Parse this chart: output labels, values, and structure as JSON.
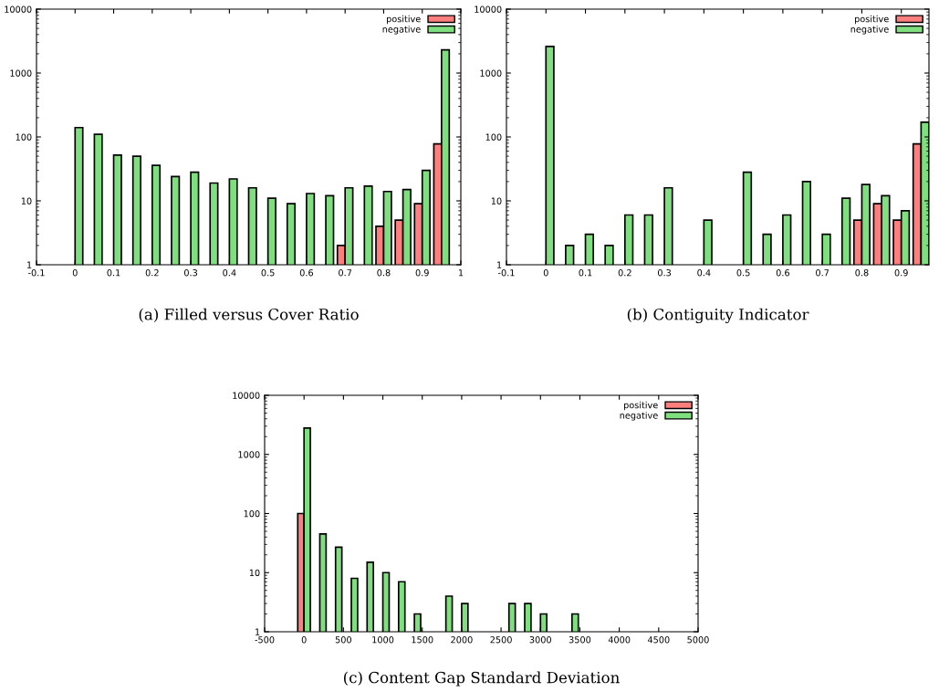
{
  "chart_data": [
    {
      "type": "bar",
      "title": "(a) Filled versus Cover Ratio",
      "log": "y",
      "legend": "top right",
      "grid": false,
      "xlim": [
        -0.1,
        1
      ],
      "xticks": [
        -0.1,
        0,
        0.1,
        0.2,
        0.3,
        0.4,
        0.5,
        0.6,
        0.7,
        0.8,
        0.9,
        1
      ],
      "ylim": [
        1,
        10000
      ],
      "yticks": [
        1,
        10,
        100,
        1000,
        10000
      ],
      "x": [
        0,
        0.05,
        0.1,
        0.15,
        0.2,
        0.25,
        0.3,
        0.35,
        0.4,
        0.45,
        0.5,
        0.55,
        0.6,
        0.65,
        0.7,
        0.75,
        0.8,
        0.85,
        0.9,
        0.95
      ],
      "series": [
        {
          "name": "positive",
          "color": "#ff7f7f",
          "values": [
            null,
            null,
            null,
            null,
            null,
            null,
            null,
            null,
            null,
            null,
            null,
            null,
            null,
            null,
            2,
            null,
            4,
            5,
            9,
            78
          ]
        },
        {
          "name": "negative",
          "color": "#7fdf7f",
          "values": [
            140,
            110,
            52,
            50,
            36,
            24,
            28,
            19,
            22,
            16,
            11,
            9,
            13,
            12,
            16,
            17,
            14,
            15,
            30,
            2300
          ]
        }
      ]
    },
    {
      "type": "bar",
      "title": "(b) Contiguity Indicator",
      "log": "y",
      "legend": "top right",
      "grid": false,
      "xlim": [
        -0.1,
        0.97
      ],
      "xticks": [
        -0.1,
        0,
        0.1,
        0.2,
        0.3,
        0.4,
        0.5,
        0.6,
        0.7,
        0.8,
        0.9
      ],
      "ylim": [
        1,
        10000
      ],
      "yticks": [
        1,
        10,
        100,
        1000,
        10000
      ],
      "x": [
        0,
        0.05,
        0.1,
        0.15,
        0.2,
        0.25,
        0.3,
        0.35,
        0.4,
        0.45,
        0.5,
        0.55,
        0.6,
        0.65,
        0.7,
        0.75,
        0.8,
        0.85,
        0.9,
        0.95
      ],
      "series": [
        {
          "name": "positive",
          "color": "#ff7f7f",
          "values": [
            null,
            null,
            null,
            null,
            null,
            null,
            null,
            null,
            null,
            null,
            null,
            null,
            null,
            null,
            null,
            null,
            5,
            9,
            5,
            78
          ]
        },
        {
          "name": "negative",
          "color": "#7fdf7f",
          "values": [
            2600,
            2,
            3,
            2,
            6,
            6,
            16,
            null,
            5,
            null,
            28,
            3,
            6,
            20,
            3,
            11,
            18,
            12,
            7,
            170
          ]
        }
      ]
    },
    {
      "type": "bar",
      "title": "(c) Content Gap Standard Deviation",
      "log": "y",
      "legend": "top right",
      "grid": false,
      "xlim": [
        -500,
        5000
      ],
      "xticks": [
        -500,
        0,
        500,
        1000,
        1500,
        2000,
        2500,
        3000,
        3500,
        4000,
        4500,
        5000
      ],
      "ylim": [
        1,
        10000
      ],
      "yticks": [
        1,
        10,
        100,
        1000,
        10000
      ],
      "x": [
        0,
        200,
        400,
        600,
        800,
        1000,
        1200,
        1400,
        1800,
        2000,
        2600,
        2800,
        3000,
        3400
      ],
      "series": [
        {
          "name": "positive",
          "color": "#ff7f7f",
          "values": [
            100,
            null,
            null,
            null,
            null,
            null,
            null,
            null,
            null,
            null,
            null,
            null,
            null,
            null
          ]
        },
        {
          "name": "negative",
          "color": "#7fdf7f",
          "values": [
            2800,
            45,
            27,
            8,
            15,
            10,
            7,
            2,
            4,
            3,
            3,
            3,
            2,
            2
          ]
        }
      ]
    }
  ]
}
